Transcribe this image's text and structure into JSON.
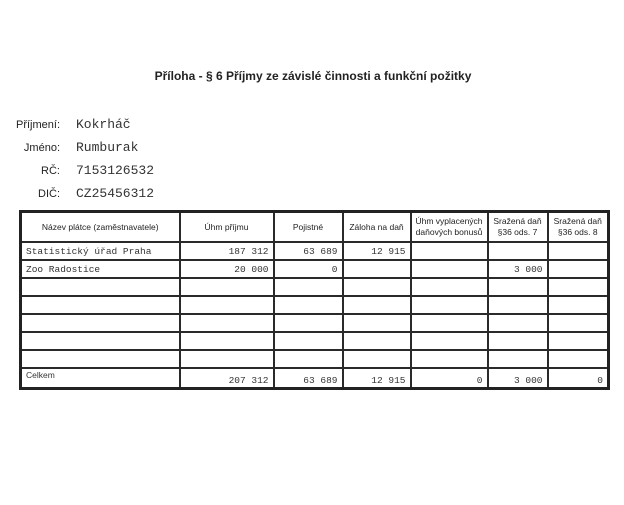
{
  "title": "Příloha - § 6 Příjmy ze závislé činnosti a funkční požitky",
  "person": [
    {
      "label": "Příjmení:",
      "value": "Kokrháč"
    },
    {
      "label": "Jméno:",
      "value": "Rumburak"
    },
    {
      "label": "RČ:",
      "value": "7153126532"
    },
    {
      "label": "DIČ:",
      "value": "CZ25456312"
    }
  ],
  "table": {
    "headers": [
      "Název plátce (zaměstnavatele)",
      "Úhm příjmu",
      "Pojistné",
      "Záloha na daň",
      "Úhm vyplacených daňových bonusů",
      "Sražená daň §36 ods. 7",
      "Sražená daň §36 ods. 8"
    ],
    "rows": [
      [
        "Statistický úřad Praha",
        "187 312",
        "63 689",
        "12 915",
        "",
        "",
        ""
      ],
      [
        "Zoo Radostice",
        "20 000",
        "0",
        "",
        "",
        "3 000",
        ""
      ],
      [
        "",
        "",
        "",
        "",
        "",
        "",
        ""
      ],
      [
        "",
        "",
        "",
        "",
        "",
        "",
        ""
      ],
      [
        "",
        "",
        "",
        "",
        "",
        "",
        ""
      ],
      [
        "",
        "",
        "",
        "",
        "",
        "",
        ""
      ],
      [
        "",
        "",
        "",
        "",
        "",
        "",
        ""
      ]
    ],
    "total": [
      "Celkem",
      "207 312",
      "63 689",
      "12 915",
      "0",
      "3 000",
      "0"
    ]
  }
}
